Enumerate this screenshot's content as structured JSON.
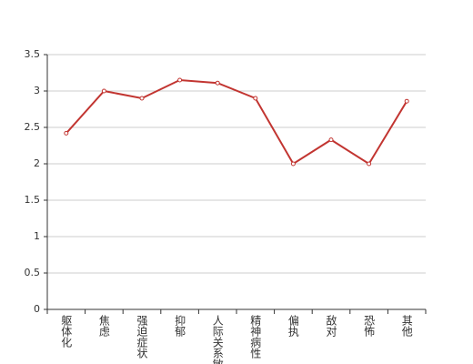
{
  "chart_data": {
    "type": "line",
    "categories": [
      "躯体化",
      "焦虑",
      "强迫症状",
      "抑郁",
      "人际关系敏感",
      "精神病性",
      "偏执",
      "敌对",
      "恐怖",
      "其他"
    ],
    "series": [
      {
        "color": "#c23531",
        "values": [
          2.42,
          3.0,
          2.9,
          3.15,
          3.11,
          2.9,
          2.0,
          2.33,
          2.0,
          2.86
        ]
      }
    ],
    "ylim": [
      0,
      3.5
    ],
    "yticks": [
      0,
      0.5,
      1,
      1.5,
      2,
      2.5,
      3,
      3.5
    ],
    "grid": true
  }
}
